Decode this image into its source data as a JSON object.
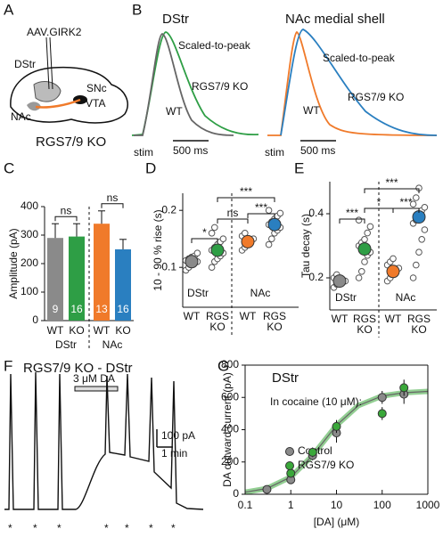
{
  "panels": {
    "A": {
      "label": "A",
      "vector": "AAV.GIRK2",
      "regions": [
        "DStr",
        "SNc",
        "VTA",
        "NAc"
      ],
      "genotype": "RGS7/9 KO"
    },
    "B": {
      "label": "B",
      "left": {
        "title": "DStr",
        "scaled": "Scaled-to-peak",
        "ko": "RGS7/9 KO",
        "wt": "WT",
        "stim": "stim",
        "scale": "500 ms"
      },
      "right": {
        "title": "NAc medial shell",
        "scaled": "Scaled-to-peak",
        "ko": "RGS7/9 KO",
        "wt": "WT",
        "stim": "stim",
        "scale": "500 ms"
      }
    },
    "F": {
      "label": "F",
      "title": "RGS7/9 KO - DStr",
      "drug": "3 μM DA",
      "scale_y": "100 pA",
      "scale_x": "1 min",
      "stim_marks": [
        "*",
        "*",
        "*",
        "*",
        "*",
        "*",
        "*"
      ]
    }
  },
  "chart_data": [
    {
      "type": "bar",
      "panel": "C",
      "ylabel": "Amplitude (pA)",
      "categories": [
        "WT",
        "KO",
        "WT",
        "KO"
      ],
      "groups": [
        "DStr",
        "NAc"
      ],
      "values": [
        290,
        295,
        340,
        250
      ],
      "errors": [
        50,
        45,
        45,
        35
      ],
      "colors": [
        "#8a8a8a",
        "#2e9e45",
        "#f07a2a",
        "#2a7fc0"
      ],
      "n": [
        9,
        16,
        13,
        16
      ],
      "significance": [
        "ns",
        "ns"
      ],
      "ylim": [
        0,
        400
      ],
      "yticks": [
        0,
        100,
        200,
        300,
        400
      ]
    },
    {
      "type": "dot",
      "panel": "D",
      "ylabel": "10 - 90 % rise (s)",
      "categories": [
        "WT",
        "RGS KO",
        "WT",
        "RGS KO"
      ],
      "groups": [
        "DStr",
        "NAc"
      ],
      "values": [
        0.11,
        0.13,
        0.145,
        0.175
      ],
      "errors": [
        0.005,
        0.008,
        0.006,
        0.008
      ],
      "colors": [
        "#8a8a8a",
        "#2e9e45",
        "#f07a2a",
        "#2a7fc0"
      ],
      "points": [
        [
          0.095,
          0.1,
          0.105,
          0.108,
          0.11,
          0.112,
          0.115,
          0.118,
          0.12,
          0.125
        ],
        [
          0.1,
          0.11,
          0.115,
          0.12,
          0.125,
          0.13,
          0.135,
          0.14,
          0.145,
          0.15,
          0.16,
          0.17
        ],
        [
          0.13,
          0.135,
          0.14,
          0.145,
          0.15,
          0.155,
          0.16
        ],
        [
          0.14,
          0.15,
          0.16,
          0.165,
          0.17,
          0.175,
          0.18,
          0.185,
          0.19,
          0.195,
          0.2
        ]
      ],
      "significance": [
        "*",
        "ns",
        "***",
        "***"
      ],
      "ylim": [
        0.03,
        0.23
      ],
      "yticks": [
        0.1,
        0.2
      ]
    },
    {
      "type": "dot",
      "panel": "E",
      "ylabel": "Tau decay (s)",
      "categories": [
        "WT",
        "RGS KO",
        "WT",
        "RGS KO"
      ],
      "groups": [
        "DStr",
        "NAc"
      ],
      "values": [
        0.19,
        0.29,
        0.22,
        0.39
      ],
      "errors": [
        0.008,
        0.02,
        0.01,
        0.02
      ],
      "colors": [
        "#8a8a8a",
        "#2e9e45",
        "#f07a2a",
        "#2a7fc0"
      ],
      "points": [
        [
          0.17,
          0.18,
          0.185,
          0.19,
          0.19,
          0.2,
          0.21
        ],
        [
          0.2,
          0.22,
          0.25,
          0.27,
          0.28,
          0.3,
          0.31,
          0.32,
          0.34,
          0.36,
          0.38
        ],
        [
          0.19,
          0.2,
          0.21,
          0.22,
          0.23,
          0.24,
          0.25,
          0.26
        ],
        [
          0.2,
          0.24,
          0.28,
          0.32,
          0.35,
          0.37,
          0.38,
          0.4,
          0.41,
          0.42,
          0.43,
          0.45,
          0.48
        ]
      ],
      "significance": [
        "***",
        "*",
        "***",
        "***"
      ],
      "ylim": [
        0.1,
        0.5
      ],
      "yticks": [
        0.2,
        0.4
      ]
    },
    {
      "type": "scatter",
      "panel": "G",
      "title": "DStr",
      "annotation": "In cocaine (10 μM):",
      "xlabel": "[DA] (μM)",
      "ylabel": "DA outward current (pA)",
      "xscale": "log",
      "xlim": [
        0.1,
        1000
      ],
      "xticks": [
        0.1,
        1,
        10,
        100,
        1000
      ],
      "ylim": [
        0,
        800
      ],
      "yticks": [
        0,
        200,
        400,
        600,
        800
      ],
      "legend": "lower right",
      "series": [
        {
          "name": "Control",
          "color": "#8a8a8a",
          "x": [
            0.3,
            1,
            3,
            10,
            100,
            300
          ],
          "values": [
            30,
            90,
            240,
            380,
            600,
            620
          ],
          "errors": [
            8,
            15,
            30,
            60,
            40,
            60
          ]
        },
        {
          "name": "RGS7/9 KO",
          "color": "#3aa83a",
          "x": [
            1,
            3,
            10,
            100,
            300
          ],
          "values": [
            130,
            260,
            420,
            500,
            660
          ],
          "errors": [
            20,
            30,
            40,
            40,
            50
          ]
        }
      ]
    }
  ]
}
